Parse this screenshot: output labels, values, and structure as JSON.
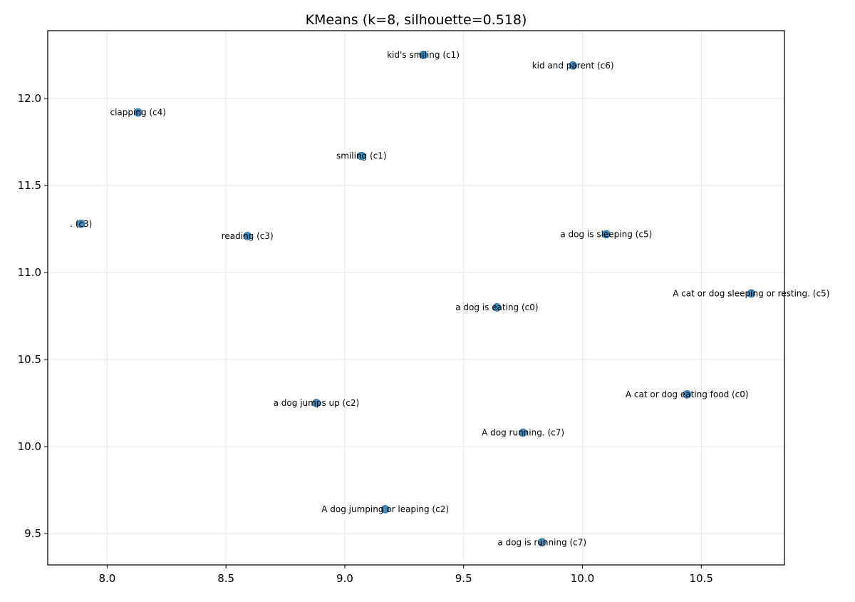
{
  "chart_data": {
    "type": "scatter",
    "title": "KMeans (k=8, silhouette=0.518)",
    "xlabel": "",
    "ylabel": "",
    "xlim": [
      7.75,
      10.85
    ],
    "ylim": [
      9.32,
      12.39
    ],
    "x_ticks": [
      8.0,
      8.5,
      9.0,
      9.5,
      10.0,
      10.5
    ],
    "y_ticks": [
      9.5,
      10.0,
      10.5,
      11.0,
      11.5,
      12.0
    ],
    "x_tick_labels": [
      "8.0",
      "8.5",
      "9.0",
      "9.5",
      "10.0",
      "10.5"
    ],
    "y_tick_labels": [
      "9.5",
      "10.0",
      "10.5",
      "11.0",
      "11.5",
      "12.0"
    ],
    "grid": true,
    "point_color": "#1f77b4",
    "points": [
      {
        "x": 9.33,
        "y": 12.25,
        "label": "kid's smiling (c1)"
      },
      {
        "x": 9.96,
        "y": 12.19,
        "label": "kid and parent (c6)"
      },
      {
        "x": 8.13,
        "y": 11.92,
        "label": "clapping (c4)"
      },
      {
        "x": 9.07,
        "y": 11.67,
        "label": "smiling (c1)"
      },
      {
        "x": 7.89,
        "y": 11.28,
        "label": ". (c3)"
      },
      {
        "x": 8.59,
        "y": 11.21,
        "label": "reading (c3)"
      },
      {
        "x": 10.1,
        "y": 11.22,
        "label": "a dog is sleeping (c5)"
      },
      {
        "x": 10.71,
        "y": 10.88,
        "label": "A cat or dog sleeping or resting. (c5)"
      },
      {
        "x": 9.64,
        "y": 10.8,
        "label": "a dog is eating (c0)"
      },
      {
        "x": 10.44,
        "y": 10.3,
        "label": "A cat or dog eating food (c0)"
      },
      {
        "x": 8.88,
        "y": 10.25,
        "label": "a dog jumps up (c2)"
      },
      {
        "x": 9.75,
        "y": 10.08,
        "label": "A dog running. (c7)"
      },
      {
        "x": 9.17,
        "y": 9.64,
        "label": "A dog jumping or leaping (c2)"
      },
      {
        "x": 9.83,
        "y": 9.45,
        "label": "a dog is running (c7)"
      }
    ]
  }
}
